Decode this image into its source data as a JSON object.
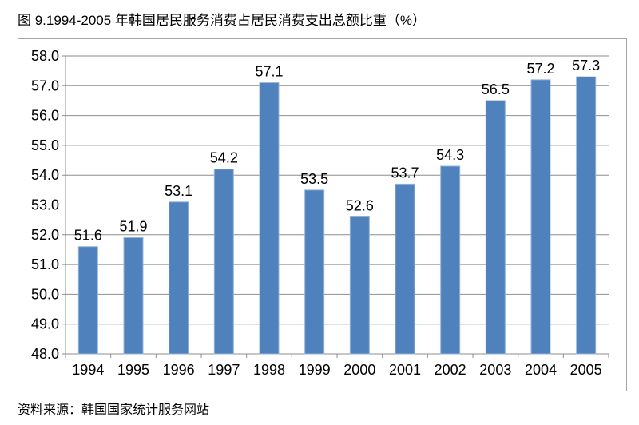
{
  "title": "图 9.1994-2005 年韩国居民服务消费占居民消费支出总额比重（%）",
  "source_note": "资料来源：韩国国家统计服务网站",
  "colors": {
    "bar_fill": "#4F81BD",
    "bar_border": "#95B3D7",
    "gridline": "#8E8E8E",
    "axis_line": "#8E8E8E",
    "chart_border": "#A6A6A6",
    "text": "#000000",
    "background": "#FFFFFF"
  },
  "chart_data": {
    "type": "bar",
    "categories": [
      "1994",
      "1995",
      "1996",
      "1997",
      "1998",
      "1999",
      "2000",
      "2001",
      "2002",
      "2003",
      "2004",
      "2005"
    ],
    "values": [
      51.6,
      51.9,
      53.1,
      54.2,
      57.1,
      53.5,
      52.6,
      53.7,
      54.3,
      56.5,
      57.2,
      57.3
    ],
    "title": "图 9.1994-2005 年韩国居民服务消费占居民消费支出总额比重（%）",
    "xlabel": "",
    "ylabel": "",
    "ylim": [
      48.0,
      58.0
    ],
    "ytick_step": 1.0,
    "ytick_decimals": 1,
    "grid": true,
    "legend_position": "none",
    "data_labels": true,
    "source": "资料来源：韩国国家统计服务网站"
  }
}
